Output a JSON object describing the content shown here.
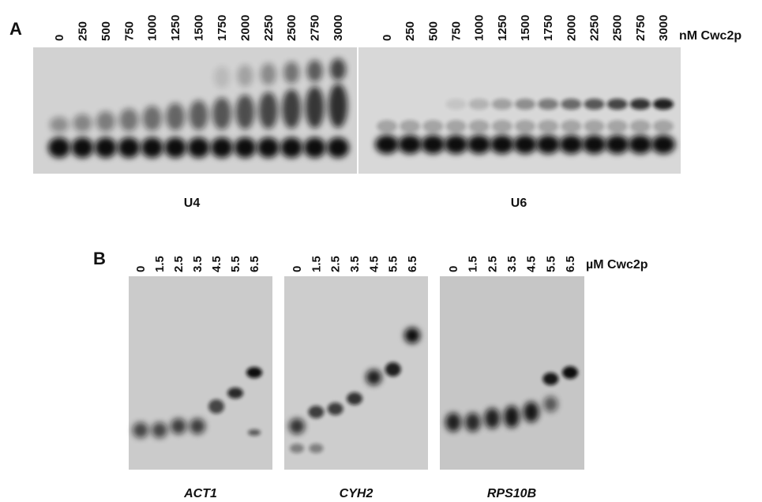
{
  "panel_a": {
    "label": "A",
    "unit": "nM Cwc2p",
    "gels": [
      {
        "label": "U4",
        "lanes": [
          "0",
          "250",
          "500",
          "750",
          "1000",
          "1250",
          "1500",
          "1750",
          "2000",
          "2250",
          "2500",
          "2750",
          "3000"
        ]
      },
      {
        "label": "U6",
        "lanes": [
          "0",
          "250",
          "500",
          "750",
          "1000",
          "1250",
          "1500",
          "1750",
          "2000",
          "2250",
          "2500",
          "2750",
          "3000"
        ]
      }
    ]
  },
  "panel_b": {
    "label": "B",
    "unit": "µM Cwc2p",
    "gels": [
      {
        "label": "ACT1",
        "lanes": [
          "0",
          "1.5",
          "2.5",
          "3.5",
          "4.5",
          "5.5",
          "6.5"
        ]
      },
      {
        "label": "CYH2",
        "lanes": [
          "0",
          "1.5",
          "2.5",
          "3.5",
          "4.5",
          "5.5",
          "6.5"
        ]
      },
      {
        "label": "RPS10B",
        "lanes": [
          "0",
          "1.5",
          "2.5",
          "3.5",
          "4.5",
          "5.5",
          "6.5"
        ]
      }
    ]
  }
}
